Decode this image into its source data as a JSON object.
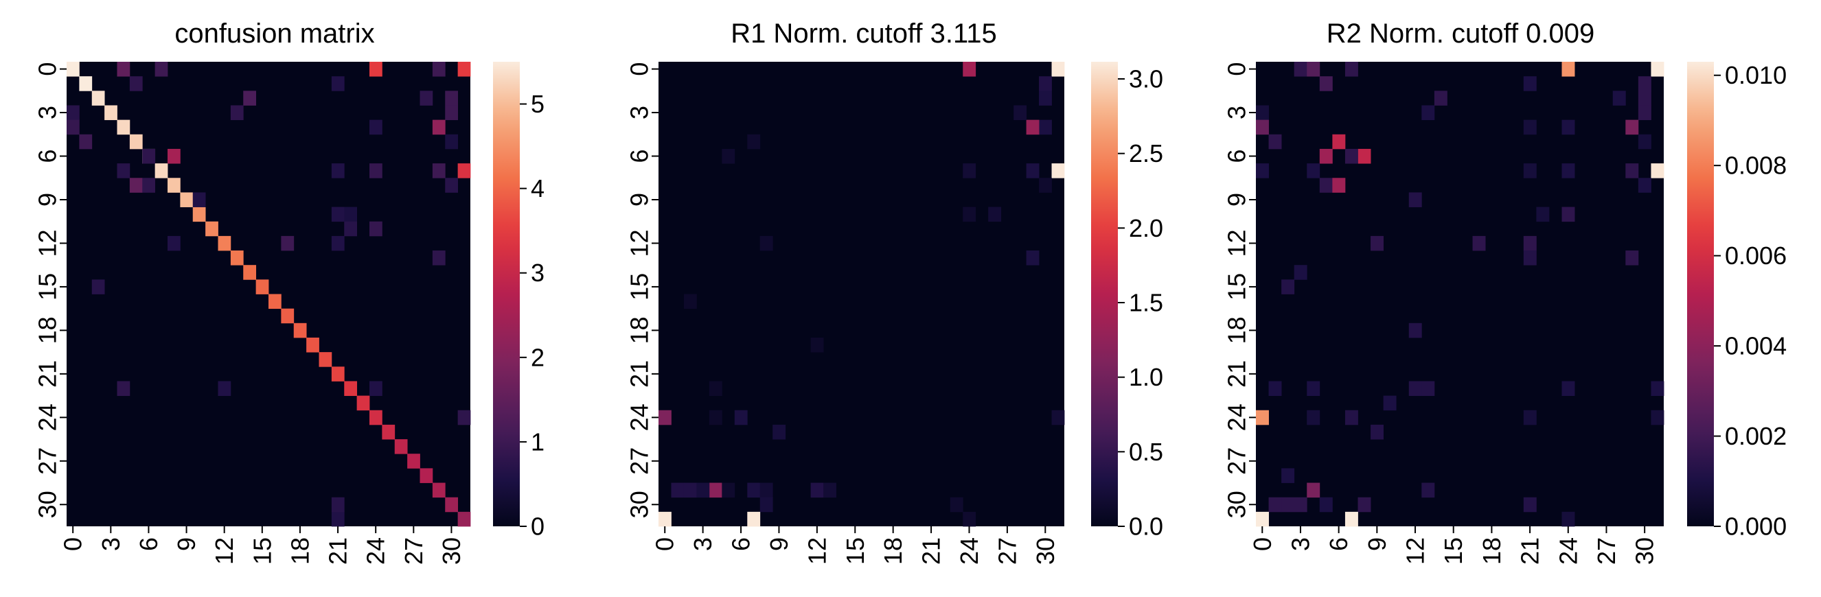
{
  "chart_data": [
    {
      "type": "heatmap",
      "title": "confusion matrix",
      "n": 32,
      "tick_step": 3,
      "xtick_labels": [
        "0",
        "3",
        "6",
        "9",
        "12",
        "15",
        "18",
        "21",
        "24",
        "27",
        "30"
      ],
      "ytick_labels": [
        "0",
        "3",
        "6",
        "9",
        "12",
        "15",
        "18",
        "21",
        "24",
        "27",
        "30"
      ],
      "vmin": 0,
      "vmax": 5.5,
      "colorbar_ticks": [
        "0",
        "1",
        "2",
        "3",
        "4",
        "5"
      ],
      "colorbar_values": [
        0,
        1,
        2,
        3,
        4,
        5
      ],
      "diagonal": [
        5.5,
        5.5,
        5.4,
        5.3,
        5.3,
        5.2,
        5.3,
        5.3,
        5.1,
        5.0,
        4.5,
        4.4,
        4.3,
        4.2,
        4.1,
        4.0,
        4.0,
        3.9,
        3.9,
        3.8,
        3.7,
        3.6,
        3.4,
        3.3,
        3.2,
        3.1,
        2.9,
        2.8,
        2.7,
        2.6,
        2.4,
        2.3
      ],
      "offdiag": [
        [
          0,
          4,
          1.5
        ],
        [
          0,
          7,
          1.0
        ],
        [
          0,
          24,
          3.5
        ],
        [
          0,
          31,
          3.5
        ],
        [
          0,
          29,
          1.0
        ],
        [
          1,
          5,
          0.8
        ],
        [
          1,
          21,
          0.6
        ],
        [
          2,
          14,
          1.2
        ],
        [
          2,
          28,
          0.8
        ],
        [
          2,
          30,
          1.0
        ],
        [
          3,
          0,
          0.7
        ],
        [
          3,
          13,
          0.8
        ],
        [
          3,
          30,
          1.0
        ],
        [
          4,
          0,
          0.9
        ],
        [
          4,
          24,
          0.6
        ],
        [
          4,
          29,
          2.2
        ],
        [
          5,
          1,
          1.0
        ],
        [
          5,
          30,
          0.5
        ],
        [
          6,
          6,
          0.8
        ],
        [
          6,
          8,
          2.5
        ],
        [
          7,
          4,
          0.7
        ],
        [
          7,
          21,
          0.6
        ],
        [
          7,
          24,
          0.9
        ],
        [
          7,
          29,
          1.0
        ],
        [
          7,
          31,
          3.3
        ],
        [
          8,
          5,
          1.5
        ],
        [
          8,
          6,
          0.8
        ],
        [
          8,
          30,
          0.7
        ],
        [
          9,
          10,
          0.6
        ],
        [
          10,
          21,
          0.6
        ],
        [
          10,
          22,
          0.5
        ],
        [
          11,
          22,
          0.7
        ],
        [
          11,
          24,
          0.9
        ],
        [
          12,
          8,
          0.6
        ],
        [
          12,
          17,
          1.0
        ],
        [
          12,
          21,
          0.6
        ],
        [
          13,
          29,
          0.8
        ],
        [
          15,
          2,
          0.7
        ],
        [
          22,
          4,
          0.8
        ],
        [
          22,
          12,
          0.6
        ],
        [
          22,
          24,
          0.6
        ],
        [
          24,
          31,
          0.8
        ],
        [
          31,
          21,
          0.6
        ],
        [
          30,
          21,
          0.7
        ]
      ]
    },
    {
      "type": "heatmap",
      "title": "R1 Norm. cutoff 3.115",
      "n": 32,
      "tick_step": 3,
      "xtick_labels": [
        "0",
        "3",
        "6",
        "9",
        "12",
        "15",
        "18",
        "21",
        "24",
        "27",
        "30"
      ],
      "ytick_labels": [
        "0",
        "3",
        "6",
        "9",
        "12",
        "15",
        "18",
        "21",
        "24",
        "27",
        "30"
      ],
      "vmin": 0,
      "vmax": 3.115,
      "colorbar_ticks": [
        "0.0",
        "0.5",
        "1.0",
        "1.5",
        "2.0",
        "2.5",
        "3.0"
      ],
      "colorbar_values": [
        0,
        0.5,
        1.0,
        1.5,
        2.0,
        2.5,
        3.0
      ],
      "cells": [
        [
          0,
          31,
          3.1
        ],
        [
          0,
          24,
          1.4
        ],
        [
          1,
          30,
          0.35
        ],
        [
          2,
          30,
          0.3
        ],
        [
          4,
          30,
          0.3
        ],
        [
          4,
          29,
          1.3
        ],
        [
          3,
          28,
          0.2
        ],
        [
          6,
          5,
          0.15
        ],
        [
          5,
          7,
          0.15
        ],
        [
          7,
          31,
          3.1
        ],
        [
          7,
          29,
          0.3
        ],
        [
          7,
          24,
          0.2
        ],
        [
          8,
          30,
          0.15
        ],
        [
          10,
          24,
          0.15
        ],
        [
          10,
          26,
          0.2
        ],
        [
          12,
          8,
          0.15
        ],
        [
          13,
          29,
          0.3
        ],
        [
          16,
          2,
          0.12
        ],
        [
          19,
          12,
          0.12
        ],
        [
          24,
          0,
          1.1
        ],
        [
          25,
          9,
          0.25
        ],
        [
          22,
          4,
          0.12
        ],
        [
          29,
          4,
          1.2
        ],
        [
          29,
          1,
          0.35
        ],
        [
          29,
          2,
          0.35
        ],
        [
          29,
          3,
          0.25
        ],
        [
          29,
          7,
          0.3
        ],
        [
          29,
          5,
          0.15
        ],
        [
          29,
          8,
          0.2
        ],
        [
          29,
          12,
          0.35
        ],
        [
          29,
          13,
          0.2
        ],
        [
          30,
          8,
          0.25
        ],
        [
          30,
          23,
          0.15
        ],
        [
          31,
          0,
          3.1
        ],
        [
          31,
          7,
          3.1
        ],
        [
          31,
          24,
          0.15
        ],
        [
          24,
          6,
          0.3
        ],
        [
          24,
          4,
          0.12
        ],
        [
          24,
          31,
          0.2
        ]
      ]
    },
    {
      "type": "heatmap",
      "title": "R2 Norm. cutoff 0.009",
      "n": 32,
      "tick_step": 3,
      "xtick_labels": [
        "0",
        "3",
        "6",
        "9",
        "12",
        "15",
        "18",
        "21",
        "24",
        "27",
        "30"
      ],
      "ytick_labels": [
        "0",
        "3",
        "6",
        "9",
        "12",
        "15",
        "18",
        "21",
        "24",
        "27",
        "30"
      ],
      "vmin": 0,
      "vmax": 0.0103,
      "colorbar_ticks": [
        "0.000",
        "0.002",
        "0.004",
        "0.006",
        "0.008",
        "0.010"
      ],
      "colorbar_values": [
        0,
        0.002,
        0.004,
        0.006,
        0.008,
        0.01
      ],
      "cells": [
        [
          0,
          3,
          0.0015
        ],
        [
          0,
          4,
          0.0025
        ],
        [
          0,
          7,
          0.0015
        ],
        [
          0,
          24,
          0.0085
        ],
        [
          0,
          31,
          0.0103
        ],
        [
          1,
          5,
          0.002
        ],
        [
          1,
          21,
          0.001
        ],
        [
          1,
          30,
          0.0015
        ],
        [
          2,
          14,
          0.0015
        ],
        [
          2,
          28,
          0.001
        ],
        [
          2,
          30,
          0.0015
        ],
        [
          3,
          0,
          0.0008
        ],
        [
          3,
          13,
          0.001
        ],
        [
          3,
          30,
          0.0015
        ],
        [
          4,
          0,
          0.003
        ],
        [
          4,
          21,
          0.0008
        ],
        [
          4,
          24,
          0.001
        ],
        [
          4,
          29,
          0.0035
        ],
        [
          5,
          1,
          0.0015
        ],
        [
          5,
          6,
          0.0055
        ],
        [
          5,
          30,
          0.0008
        ],
        [
          6,
          5,
          0.0045
        ],
        [
          6,
          8,
          0.0055
        ],
        [
          6,
          7,
          0.0015
        ],
        [
          7,
          0,
          0.001
        ],
        [
          7,
          4,
          0.001
        ],
        [
          7,
          21,
          0.0008
        ],
        [
          7,
          24,
          0.001
        ],
        [
          7,
          29,
          0.0015
        ],
        [
          7,
          31,
          0.0102
        ],
        [
          8,
          5,
          0.0015
        ],
        [
          8,
          6,
          0.0045
        ],
        [
          8,
          30,
          0.001
        ],
        [
          9,
          12,
          0.0012
        ],
        [
          10,
          22,
          0.0008
        ],
        [
          10,
          24,
          0.0015
        ],
        [
          12,
          9,
          0.0015
        ],
        [
          12,
          17,
          0.0015
        ],
        [
          12,
          21,
          0.0015
        ],
        [
          13,
          21,
          0.0012
        ],
        [
          13,
          29,
          0.0015
        ],
        [
          14,
          3,
          0.001
        ],
        [
          15,
          2,
          0.0012
        ],
        [
          18,
          12,
          0.0012
        ],
        [
          22,
          1,
          0.001
        ],
        [
          22,
          4,
          0.001
        ],
        [
          22,
          12,
          0.0012
        ],
        [
          22,
          13,
          0.0012
        ],
        [
          22,
          24,
          0.001
        ],
        [
          22,
          31,
          0.001
        ],
        [
          23,
          10,
          0.001
        ],
        [
          24,
          0,
          0.0085
        ],
        [
          24,
          4,
          0.0008
        ],
        [
          24,
          7,
          0.0012
        ],
        [
          24,
          21,
          0.0008
        ],
        [
          24,
          31,
          0.0008
        ],
        [
          25,
          9,
          0.0012
        ],
        [
          28,
          2,
          0.001
        ],
        [
          29,
          4,
          0.0035
        ],
        [
          29,
          13,
          0.0012
        ],
        [
          30,
          1,
          0.0015
        ],
        [
          30,
          2,
          0.0015
        ],
        [
          30,
          3,
          0.0015
        ],
        [
          30,
          5,
          0.001
        ],
        [
          30,
          8,
          0.0015
        ],
        [
          30,
          21,
          0.0012
        ],
        [
          31,
          0,
          0.0103
        ],
        [
          31,
          7,
          0.0103
        ],
        [
          31,
          24,
          0.0008
        ]
      ]
    }
  ]
}
